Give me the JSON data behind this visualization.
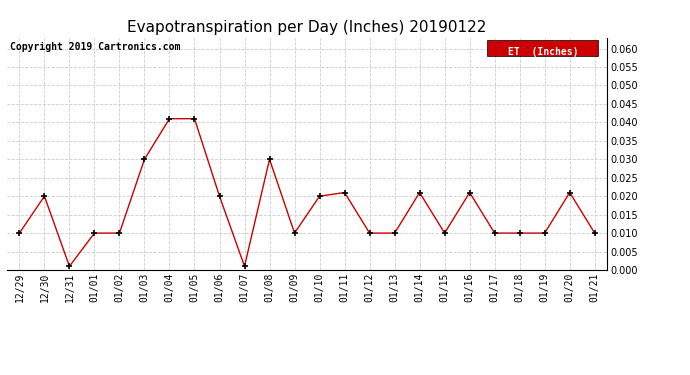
{
  "title": "Evapotranspiration per Day (Inches) 20190122",
  "copyright": "Copyright 2019 Cartronics.com",
  "legend_label": "ET  (Inches)",
  "x_labels": [
    "12/29",
    "12/30",
    "12/31",
    "01/01",
    "01/02",
    "01/03",
    "01/04",
    "01/05",
    "01/06",
    "01/07",
    "01/08",
    "01/09",
    "01/10",
    "01/11",
    "01/12",
    "01/13",
    "01/14",
    "01/15",
    "01/16",
    "01/17",
    "01/18",
    "01/19",
    "01/20",
    "01/21"
  ],
  "y_values": [
    0.01,
    0.02,
    0.001,
    0.01,
    0.01,
    0.03,
    0.041,
    0.041,
    0.02,
    0.001,
    0.03,
    0.01,
    0.02,
    0.021,
    0.01,
    0.01,
    0.021,
    0.01,
    0.021,
    0.01,
    0.01,
    0.01,
    0.021,
    0.01
  ],
  "line_color": "#cc0000",
  "marker_color": "#000000",
  "background_color": "#ffffff",
  "grid_color": "#cccccc",
  "ylim": [
    0.0,
    0.063
  ],
  "yticks": [
    0.0,
    0.005,
    0.01,
    0.015,
    0.02,
    0.025,
    0.03,
    0.035,
    0.04,
    0.045,
    0.05,
    0.055,
    0.06
  ],
  "title_fontsize": 11,
  "copyright_fontsize": 7,
  "tick_fontsize": 7,
  "legend_bg": "#cc0000",
  "legend_text_color": "#ffffff"
}
